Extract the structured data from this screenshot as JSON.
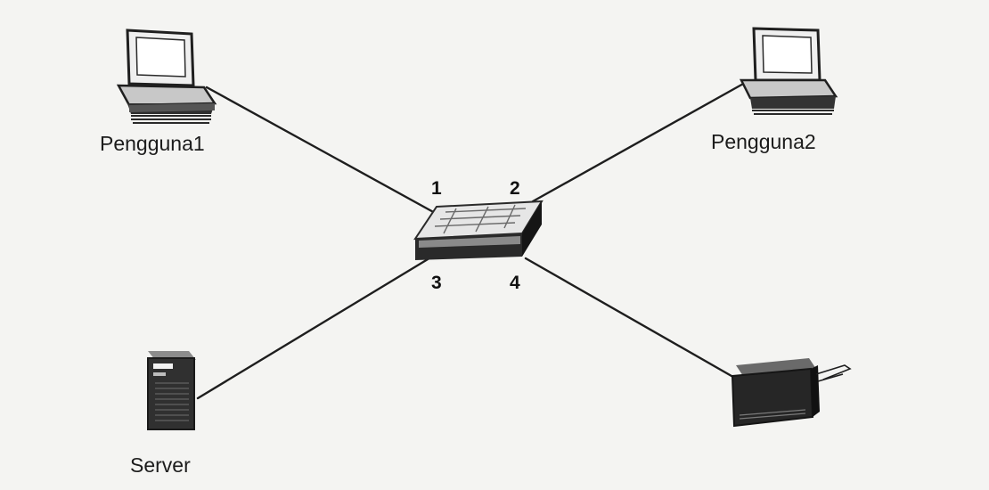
{
  "nodes": {
    "pengguna1": {
      "label": "Pengguna1",
      "icon": "desktop-computer-icon"
    },
    "pengguna2": {
      "label": "Pengguna2",
      "icon": "desktop-computer-icon"
    },
    "server": {
      "label": "Server",
      "icon": "server-tower-icon"
    },
    "printer": {
      "label": "",
      "icon": "printer-icon"
    },
    "switch": {
      "label": "",
      "icon": "network-switch-icon"
    }
  },
  "ports": [
    "1",
    "2",
    "3",
    "4"
  ],
  "links": [
    {
      "from": "pengguna1",
      "to": "switch",
      "port": "1"
    },
    {
      "from": "pengguna2",
      "to": "switch",
      "port": "2"
    },
    {
      "from": "server",
      "to": "switch",
      "port": "3"
    },
    {
      "from": "printer",
      "to": "switch",
      "port": "4"
    }
  ],
  "colors": {
    "background": "#f4f4f2",
    "ink": "#1c1c1c",
    "device_dark": "#2a2a2a",
    "device_light": "#d9d9d9"
  }
}
